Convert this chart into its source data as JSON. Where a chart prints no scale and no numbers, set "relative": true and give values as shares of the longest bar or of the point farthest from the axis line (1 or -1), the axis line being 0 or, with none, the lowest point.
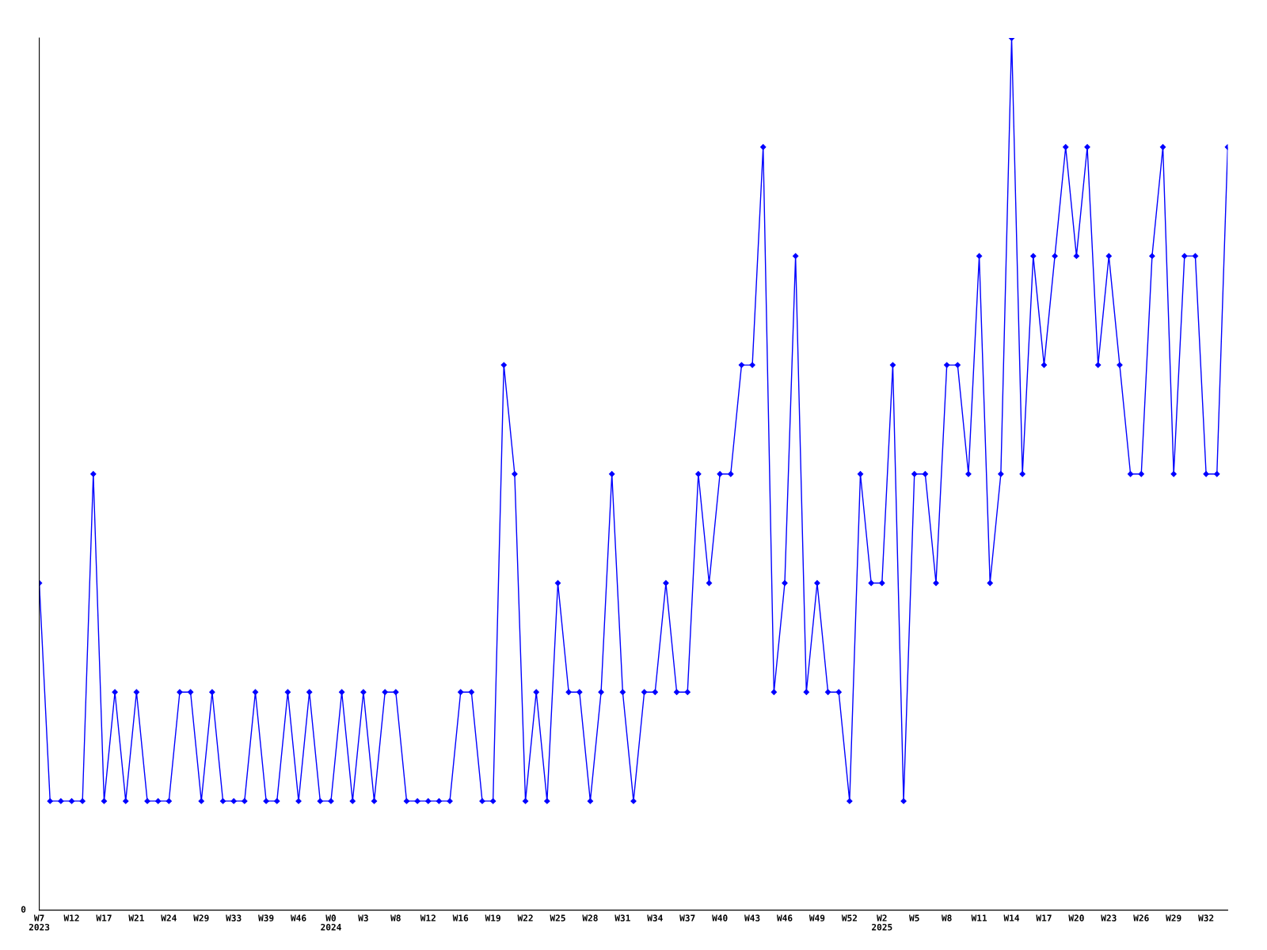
{
  "chart_data": {
    "type": "line",
    "relative": true,
    "color": "#0000ff",
    "marker": "diamond",
    "line_style": "solid",
    "grid": false,
    "annotations": [
      "0"
    ],
    "categories": [
      "W7\n2023",
      null,
      null,
      "W12",
      null,
      null,
      "W17",
      null,
      null,
      "W21",
      null,
      null,
      "W24",
      null,
      null,
      "W29",
      null,
      null,
      "W33",
      null,
      null,
      "W39",
      null,
      null,
      "W46",
      null,
      null,
      "W0\n2024",
      null,
      null,
      "W3",
      null,
      null,
      "W8",
      null,
      null,
      "W12",
      null,
      null,
      "W16",
      null,
      null,
      "W19",
      null,
      null,
      "W22",
      null,
      null,
      "W25",
      null,
      null,
      "W28",
      null,
      null,
      "W31",
      null,
      null,
      "W34",
      null,
      null,
      "W37",
      null,
      null,
      "W40",
      null,
      null,
      "W43",
      null,
      null,
      "W46",
      null,
      null,
      "W49",
      null,
      null,
      "W52",
      null,
      null,
      "W2\n2025",
      null,
      null,
      "W5",
      null,
      null,
      "W8",
      null,
      null,
      "W11",
      null,
      null,
      "W14",
      null,
      null,
      "W17",
      null,
      null,
      "W20",
      null,
      null,
      "W23",
      null,
      null,
      "W26",
      null,
      null,
      "W29",
      null,
      null,
      "W32",
      null,
      null
    ],
    "values": [
      0.375,
      0.125,
      0.125,
      0.125,
      0.125,
      0.5,
      0.125,
      0.25,
      0.125,
      0.25,
      0.125,
      0.125,
      0.125,
      0.25,
      0.25,
      0.125,
      0.25,
      0.125,
      0.125,
      0.125,
      0.25,
      0.125,
      0.125,
      0.25,
      0.125,
      0.25,
      0.125,
      0.125,
      0.25,
      0.125,
      0.25,
      0.125,
      0.25,
      0.25,
      0.125,
      0.125,
      0.125,
      0.125,
      0.125,
      0.25,
      0.25,
      0.125,
      0.125,
      0.625,
      0.5,
      0.125,
      0.25,
      0.125,
      0.375,
      0.25,
      0.25,
      0.125,
      0.25,
      0.5,
      0.25,
      0.125,
      0.25,
      0.25,
      0.375,
      0.25,
      0.25,
      0.5,
      0.375,
      0.5,
      0.5,
      0.625,
      0.625,
      0.875,
      0.25,
      0.375,
      0.75,
      0.25,
      0.375,
      0.25,
      0.25,
      0.125,
      0.5,
      0.375,
      0.375,
      0.625,
      0.125,
      0.5,
      0.5,
      0.375,
      0.625,
      0.625,
      0.5,
      0.75,
      0.375,
      0.5,
      1,
      0.5,
      0.75,
      0.625,
      0.75,
      0.875,
      0.75,
      0.875,
      0.625,
      0.75,
      0.625,
      0.5,
      0.5,
      0.75,
      0.875,
      0.5,
      0.75,
      0.75,
      0.5,
      0.5,
      0.875
    ]
  }
}
